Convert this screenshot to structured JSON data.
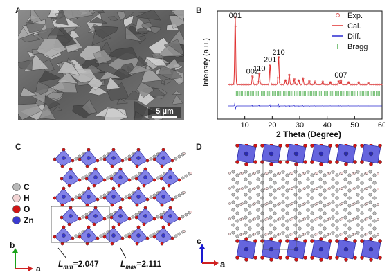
{
  "panels": {
    "a": {
      "letter": "A",
      "scale_bar": "5 μm"
    },
    "b": {
      "letter": "B"
    },
    "c": {
      "letter": "C",
      "legend": [
        {
          "label": "C",
          "color": "#b9b9b9"
        },
        {
          "label": "H",
          "color": "#f2d4d4"
        },
        {
          "label": "O",
          "color": "#d01515"
        },
        {
          "label": "Zn",
          "color": "#3a3ad0"
        }
      ],
      "axis_b": "b",
      "axis_a": "a",
      "lmin_label_base": "L",
      "lmin_label_sub": "min",
      "lmin_value": "=2.047",
      "lmax_label_base": "L",
      "lmax_label_sub": "max",
      "lmax_value": "=2.111"
    },
    "d": {
      "letter": "D",
      "axis_c": "c",
      "axis_a": "a"
    }
  },
  "chart_data": {
    "type": "line",
    "xlabel": "2 Theta (Degree)",
    "ylabel": "Intensity (a.u.)",
    "xlim": [
      0,
      60
    ],
    "xticks": [
      10,
      20,
      30,
      40,
      50,
      60
    ],
    "legend": [
      {
        "label": "Exp.",
        "color": "#d94b4b",
        "style": "circle"
      },
      {
        "label": "Cal.",
        "color": "#e03030",
        "style": "line"
      },
      {
        "label": "Diff.",
        "color": "#2a2ad0",
        "style": "line"
      },
      {
        "label": "Bragg",
        "color": "#2a9d2a",
        "style": "tick"
      }
    ],
    "peak_labels": [
      {
        "label": "001",
        "x": 6.5
      },
      {
        "label": "002",
        "x": 12.8
      },
      {
        "label": "110",
        "x": 15.3
      },
      {
        "label": "201",
        "x": 19.2
      },
      {
        "label": "210",
        "x": 22.3
      },
      {
        "label": "007",
        "x": 45.0
      }
    ],
    "peaks": [
      {
        "x": 6.5,
        "h": 1.0
      },
      {
        "x": 12.8,
        "h": 0.12
      },
      {
        "x": 15.3,
        "h": 0.16
      },
      {
        "x": 19.2,
        "h": 0.29
      },
      {
        "x": 22.3,
        "h": 0.4
      },
      {
        "x": 24.8,
        "h": 0.06
      },
      {
        "x": 26.2,
        "h": 0.14
      },
      {
        "x": 28.0,
        "h": 0.08
      },
      {
        "x": 29.6,
        "h": 0.06
      },
      {
        "x": 31.2,
        "h": 0.09
      },
      {
        "x": 33.5,
        "h": 0.05
      },
      {
        "x": 35.6,
        "h": 0.04
      },
      {
        "x": 38.4,
        "h": 0.04
      },
      {
        "x": 41.2,
        "h": 0.03
      },
      {
        "x": 44.2,
        "h": 0.05
      },
      {
        "x": 45.0,
        "h": 0.06
      },
      {
        "x": 47.8,
        "h": 0.03
      },
      {
        "x": 51.5,
        "h": 0.03
      },
      {
        "x": 55.0,
        "h": 0.02
      }
    ]
  }
}
